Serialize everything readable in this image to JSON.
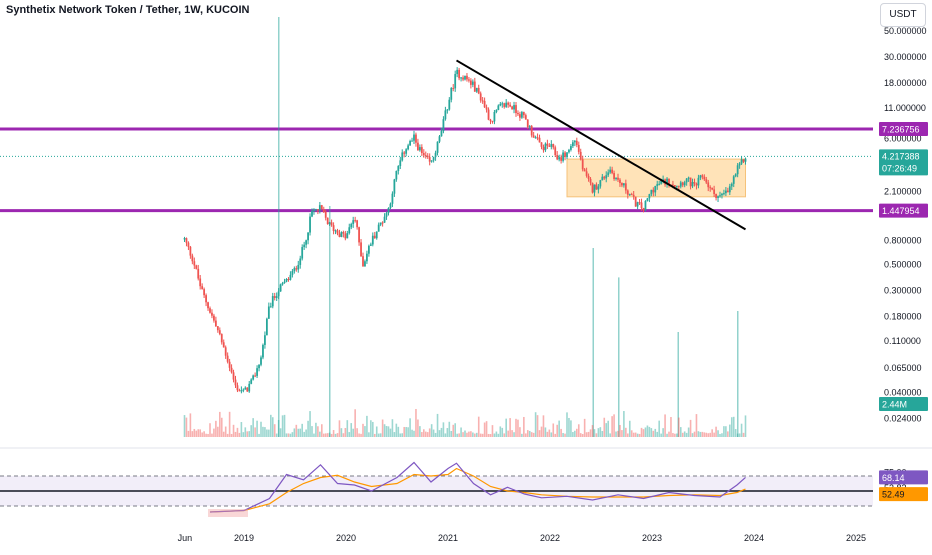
{
  "header": {
    "title": "Synthetix Network Token / Tether, 1W, KUCOIN",
    "currency": "USDT"
  },
  "chart_data": [
    {
      "type": "candlestick",
      "scale": "log",
      "price_axis_ticks": [
        "50.000000",
        "30.000000",
        "18.000000",
        "11.000000",
        "6.000000",
        "2.100000",
        "0.800000",
        "0.500000",
        "0.300000",
        "0.180000",
        "0.110000",
        "0.065000",
        "0.040000",
        "0.024000"
      ],
      "time_axis_labels": [
        "Jun",
        "2019",
        "2020",
        "2021",
        "2022",
        "2023",
        "2024",
        "2025"
      ],
      "badges": {
        "upper_level": "7.236756",
        "lower_level": "1.447954",
        "last_price": "4.217388",
        "countdown": "07:26:49",
        "volume": "2.44M"
      },
      "horizontal_levels": [
        7.236756,
        1.447954
      ],
      "last_price": 4.217388,
      "trendline": {
        "from": [
          "2021-02",
          28.0
        ],
        "to": [
          "2023-12",
          1.0
        ]
      },
      "range_box": {
        "from": "2022-03",
        "to": "2023-12",
        "low": 1.9,
        "high": 4.0
      },
      "colors": {
        "up": "#26a69a",
        "down": "#ef5350",
        "level": "#9c27b0",
        "box": "#ffd79a",
        "trendline": "#000000"
      },
      "price_path": [
        [
          "2018-06",
          0.82
        ],
        [
          "2018-07",
          0.55
        ],
        [
          "2018-08",
          0.3
        ],
        [
          "2018-09",
          0.2
        ],
        [
          "2018-10",
          0.13
        ],
        [
          "2018-11",
          0.08
        ],
        [
          "2018-12",
          0.045
        ],
        [
          "2019-01",
          0.04
        ],
        [
          "2019-02",
          0.05
        ],
        [
          "2019-03",
          0.08
        ],
        [
          "2019-04",
          0.22
        ],
        [
          "2019-05",
          0.3
        ],
        [
          "2019-06",
          0.36
        ],
        [
          "2019-07",
          0.45
        ],
        [
          "2019-08",
          0.7
        ],
        [
          "2019-09",
          1.4
        ],
        [
          "2019-10",
          1.5
        ],
        [
          "2019-11",
          1.1
        ],
        [
          "2019-12",
          0.95
        ],
        [
          "2020-01",
          0.85
        ],
        [
          "2020-02",
          1.3
        ],
        [
          "2020-03",
          0.5
        ],
        [
          "2020-04",
          0.8
        ],
        [
          "2020-05",
          1.1
        ],
        [
          "2020-06",
          1.5
        ],
        [
          "2020-07",
          3.2
        ],
        [
          "2020-08",
          5.0
        ],
        [
          "2020-09",
          6.0
        ],
        [
          "2020-10",
          4.3
        ],
        [
          "2020-11",
          3.6
        ],
        [
          "2020-12",
          6.0
        ],
        [
          "2021-01",
          12.0
        ],
        [
          "2021-02",
          22.0
        ],
        [
          "2021-03",
          20.0
        ],
        [
          "2021-04",
          17.0
        ],
        [
          "2021-05",
          13.0
        ],
        [
          "2021-06",
          8.5
        ],
        [
          "2021-07",
          11.0
        ],
        [
          "2021-08",
          12.0
        ],
        [
          "2021-09",
          10.5
        ],
        [
          "2021-10",
          9.0
        ],
        [
          "2021-11",
          6.5
        ],
        [
          "2021-12",
          5.0
        ],
        [
          "2022-01",
          5.2
        ],
        [
          "2022-02",
          4.0
        ],
        [
          "2022-03",
          4.5
        ],
        [
          "2022-04",
          6.0
        ],
        [
          "2022-05",
          3.0
        ],
        [
          "2022-06",
          2.2
        ],
        [
          "2022-07",
          2.6
        ],
        [
          "2022-08",
          3.3
        ],
        [
          "2022-09",
          2.6
        ],
        [
          "2022-10",
          2.2
        ],
        [
          "2022-11",
          1.7
        ],
        [
          "2022-12",
          1.5
        ],
        [
          "2023-01",
          2.2
        ],
        [
          "2023-02",
          2.5
        ],
        [
          "2023-03",
          2.6
        ],
        [
          "2023-04",
          2.4
        ],
        [
          "2023-05",
          2.7
        ],
        [
          "2023-06",
          2.3
        ],
        [
          "2023-07",
          2.9
        ],
        [
          "2023-08",
          2.1
        ],
        [
          "2023-09",
          1.9
        ],
        [
          "2023-10",
          2.1
        ],
        [
          "2023-11",
          3.2
        ],
        [
          "2023-12",
          4.2
        ]
      ],
      "volume_spikes": [
        [
          "2019-05",
          1.0
        ],
        [
          "2019-11",
          0.55
        ],
        [
          "2022-06",
          0.45
        ],
        [
          "2022-09",
          0.38
        ],
        [
          "2023-04",
          0.25
        ],
        [
          "2023-11",
          0.3
        ]
      ]
    },
    {
      "type": "line",
      "indicator": "RSI",
      "axis_ticks": [
        "75.00",
        "53.82",
        "43.65"
      ],
      "badges": {
        "rsi": "68.14",
        "rsi_ma": "52.49"
      },
      "bands": [
        70,
        30
      ],
      "mid_level": 50,
      "colors": {
        "rsi": "#7e57c2",
        "ma": "#ff9800",
        "band_fill": "#e9e3f5",
        "rsi_value": "#7e57c2",
        "ma_value": "#ff9800"
      },
      "rsi": [
        [
          "2018-09",
          22
        ],
        [
          "2019-01",
          24
        ],
        [
          "2019-04",
          40
        ],
        [
          "2019-06",
          72
        ],
        [
          "2019-08",
          65
        ],
        [
          "2019-10",
          85
        ],
        [
          "2019-12",
          60
        ],
        [
          "2020-02",
          58
        ],
        [
          "2020-04",
          50
        ],
        [
          "2020-07",
          68
        ],
        [
          "2020-09",
          88
        ],
        [
          "2020-11",
          62
        ],
        [
          "2021-01",
          80
        ],
        [
          "2021-02",
          87
        ],
        [
          "2021-04",
          60
        ],
        [
          "2021-06",
          45
        ],
        [
          "2021-08",
          55
        ],
        [
          "2021-10",
          46
        ],
        [
          "2021-12",
          41
        ],
        [
          "2022-03",
          43
        ],
        [
          "2022-06",
          38
        ],
        [
          "2022-09",
          45
        ],
        [
          "2022-12",
          40
        ],
        [
          "2023-03",
          48
        ],
        [
          "2023-06",
          44
        ],
        [
          "2023-09",
          42
        ],
        [
          "2023-11",
          58
        ],
        [
          "2023-12",
          68.14
        ]
      ],
      "ma": [
        [
          "2018-09",
          22
        ],
        [
          "2019-01",
          24
        ],
        [
          "2019-04",
          33
        ],
        [
          "2019-06",
          48
        ],
        [
          "2019-08",
          60
        ],
        [
          "2019-10",
          68
        ],
        [
          "2019-12",
          71
        ],
        [
          "2020-02",
          62
        ],
        [
          "2020-04",
          56
        ],
        [
          "2020-07",
          60
        ],
        [
          "2020-09",
          72
        ],
        [
          "2020-11",
          70
        ],
        [
          "2021-01",
          72
        ],
        [
          "2021-02",
          80
        ],
        [
          "2021-04",
          70
        ],
        [
          "2021-06",
          56
        ],
        [
          "2021-08",
          50
        ],
        [
          "2021-10",
          48
        ],
        [
          "2021-12",
          45
        ],
        [
          "2022-03",
          43
        ],
        [
          "2022-06",
          42
        ],
        [
          "2022-09",
          42
        ],
        [
          "2022-12",
          42
        ],
        [
          "2023-03",
          44
        ],
        [
          "2023-06",
          45
        ],
        [
          "2023-09",
          44
        ],
        [
          "2023-11",
          48
        ],
        [
          "2023-12",
          52.49
        ]
      ]
    }
  ]
}
